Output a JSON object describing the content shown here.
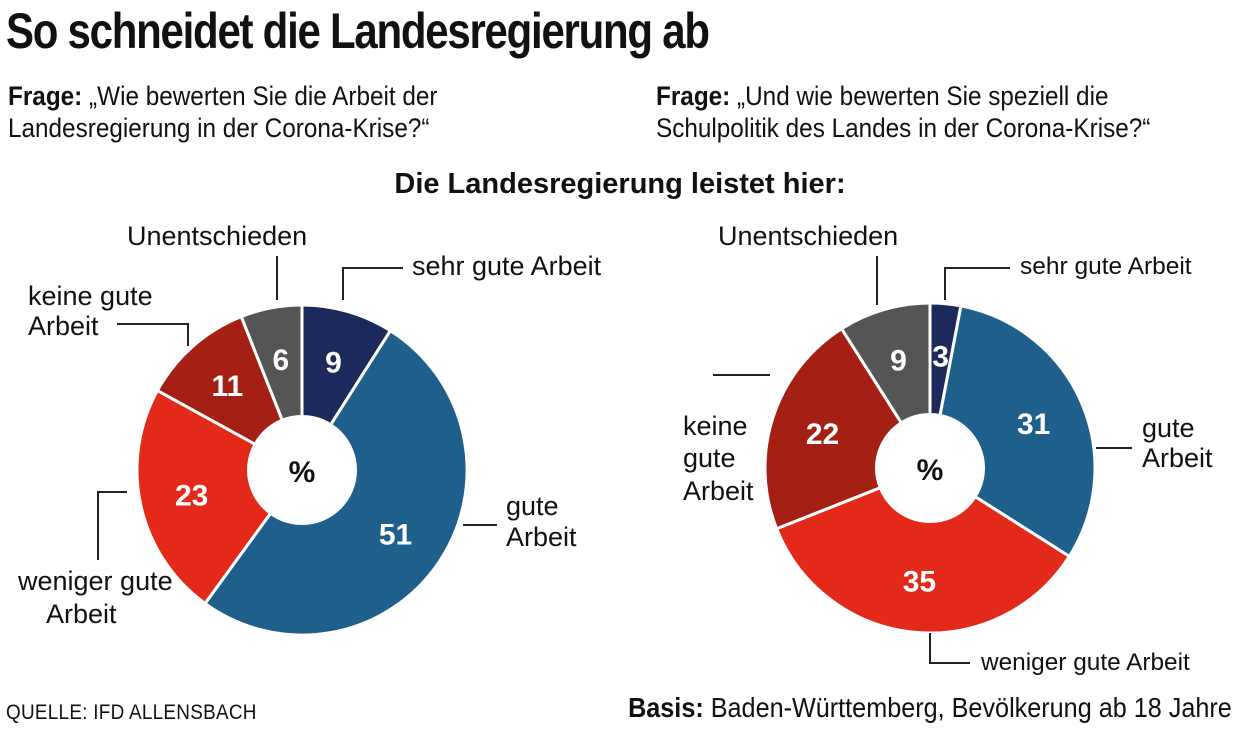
{
  "title": "So schneidet die Landesregierung ab",
  "subtitle": "Die Landesregierung leistet hier:",
  "questions": [
    {
      "label": "Frage:",
      "line1": "„Wie bewerten Sie die Arbeit der",
      "line2": "Landesregierung in der Corona-Krise?“"
    },
    {
      "label": "Frage:",
      "line1": "„Und wie bewerten Sie speziell die",
      "line2": "Schulpolitik des Landes in der Corona-Krise?“"
    }
  ],
  "center_label": "%",
  "footer": {
    "source": "QUELLE: IFD ALLENSBACH",
    "basis_label": "Basis:",
    "basis_text": " Baden-Württemberg, Bevölkerung ab 18 Jahre"
  },
  "chart_data": [
    {
      "type": "pie",
      "unit": "%",
      "categories": [
        "sehr gute Arbeit",
        "gute Arbeit",
        "weniger gute Arbeit",
        "keine gute Arbeit",
        "Unentschieden"
      ],
      "values": [
        9,
        51,
        23,
        11,
        6
      ],
      "colors": [
        "#1c2a5b",
        "#1f5f8b",
        "#e3291a",
        "#a52014",
        "#555555"
      ]
    },
    {
      "type": "pie",
      "unit": "%",
      "categories": [
        "sehr gute Arbeit",
        "gute Arbeit",
        "weniger gute Arbeit",
        "keine gute Arbeit",
        "Unentschieden"
      ],
      "values": [
        3,
        31,
        35,
        22,
        9
      ],
      "colors": [
        "#1c2a5b",
        "#1f5f8b",
        "#e3291a",
        "#a52014",
        "#555555"
      ]
    }
  ]
}
